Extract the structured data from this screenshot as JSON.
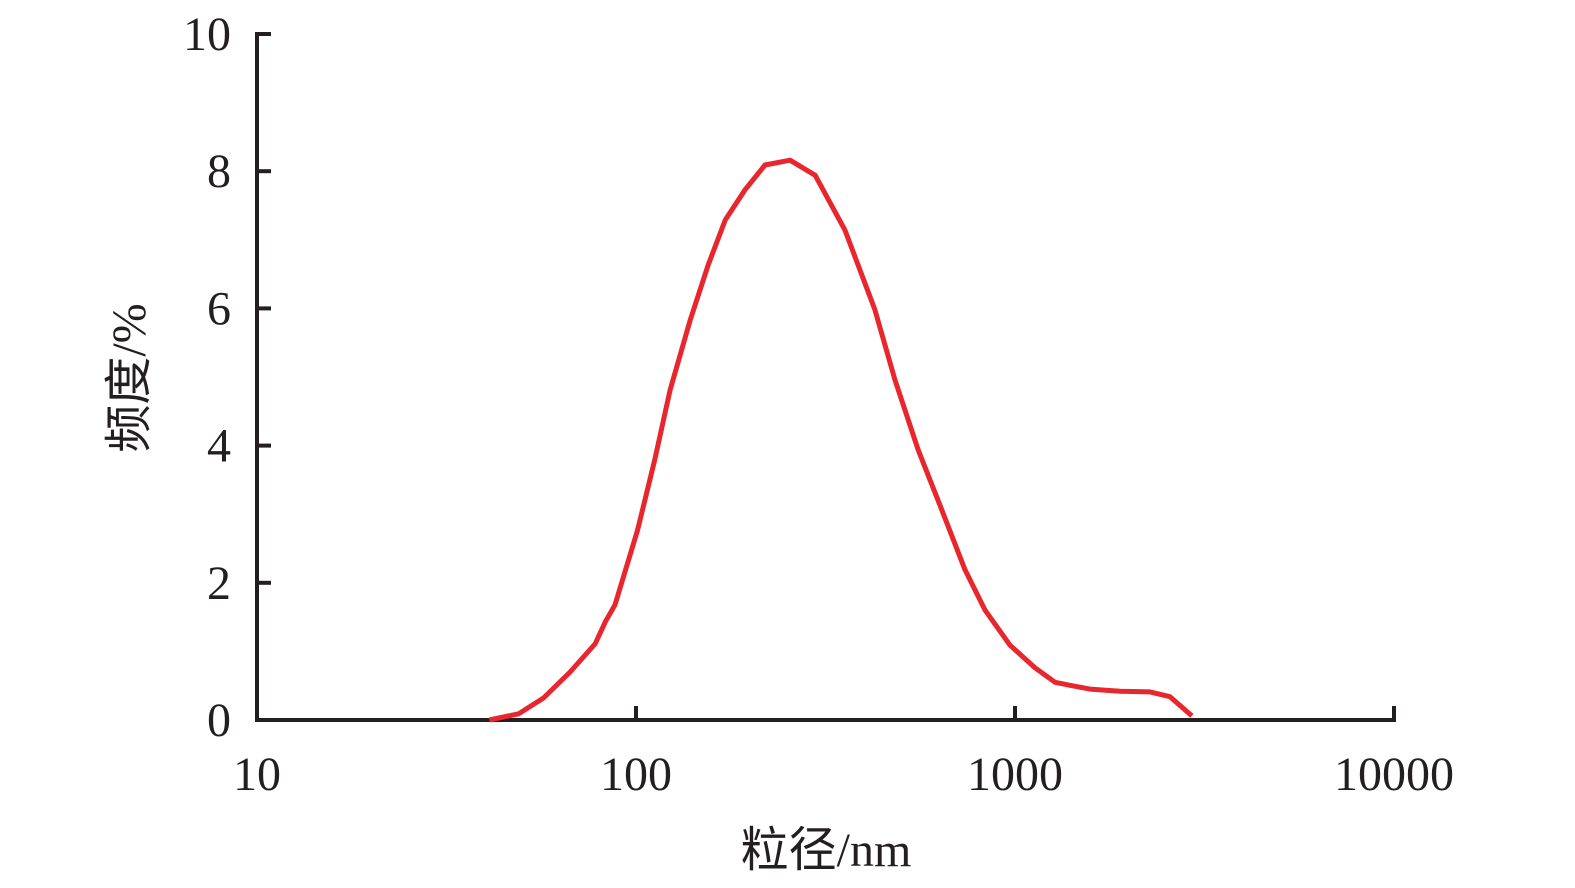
{
  "chart_data": {
    "type": "line",
    "x_label": "粒径/nm",
    "y_label": "频度/%",
    "xscale": "log",
    "xlim": [
      10,
      10000
    ],
    "xticks": [
      10,
      100,
      1000,
      10000
    ],
    "ylim": [
      0,
      10
    ],
    "yticks": [
      0,
      2,
      4,
      6,
      8,
      10
    ],
    "series": [
      {
        "color": "#e8262d",
        "x": [
          41,
          49,
          57,
          67,
          78,
          83,
          88,
          101,
          112,
          123,
          139,
          155,
          172,
          194,
          219,
          255,
          297,
          356,
          427,
          482,
          555,
          634,
          738,
          834,
          970,
          1130,
          1276,
          1413,
          1577,
          1893,
          2271,
          2565,
          2930
        ],
        "values": [
          0,
          0.09,
          0.32,
          0.7,
          1.11,
          1.43,
          1.68,
          2.77,
          3.79,
          4.81,
          5.83,
          6.63,
          7.29,
          7.73,
          8.09,
          8.16,
          7.94,
          7.14,
          5.98,
          4.96,
          3.94,
          3.13,
          2.19,
          1.6,
          1.09,
          0.76,
          0.55,
          0.5,
          0.45,
          0.42,
          0.41,
          0.34,
          0.06
        ]
      }
    ]
  }
}
